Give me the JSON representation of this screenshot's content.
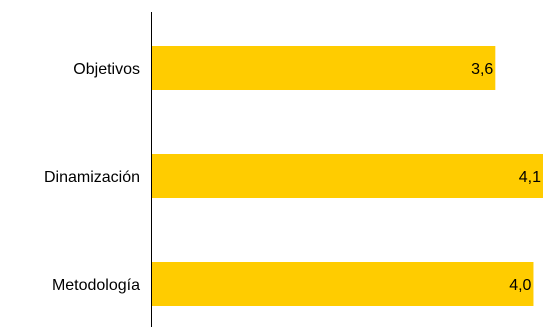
{
  "chart_data": {
    "type": "bar",
    "orientation": "horizontal",
    "categories": [
      "Objetivos",
      "Dinamización",
      "Metodología"
    ],
    "values": [
      3.6,
      4.1,
      4.0
    ],
    "value_labels": [
      "3,6",
      "4,1",
      "4,0"
    ],
    "xlim": [
      0,
      4.1
    ],
    "bar_color": "#FFCC00",
    "axis_color": "#000000",
    "grid": false,
    "legend": "none"
  }
}
